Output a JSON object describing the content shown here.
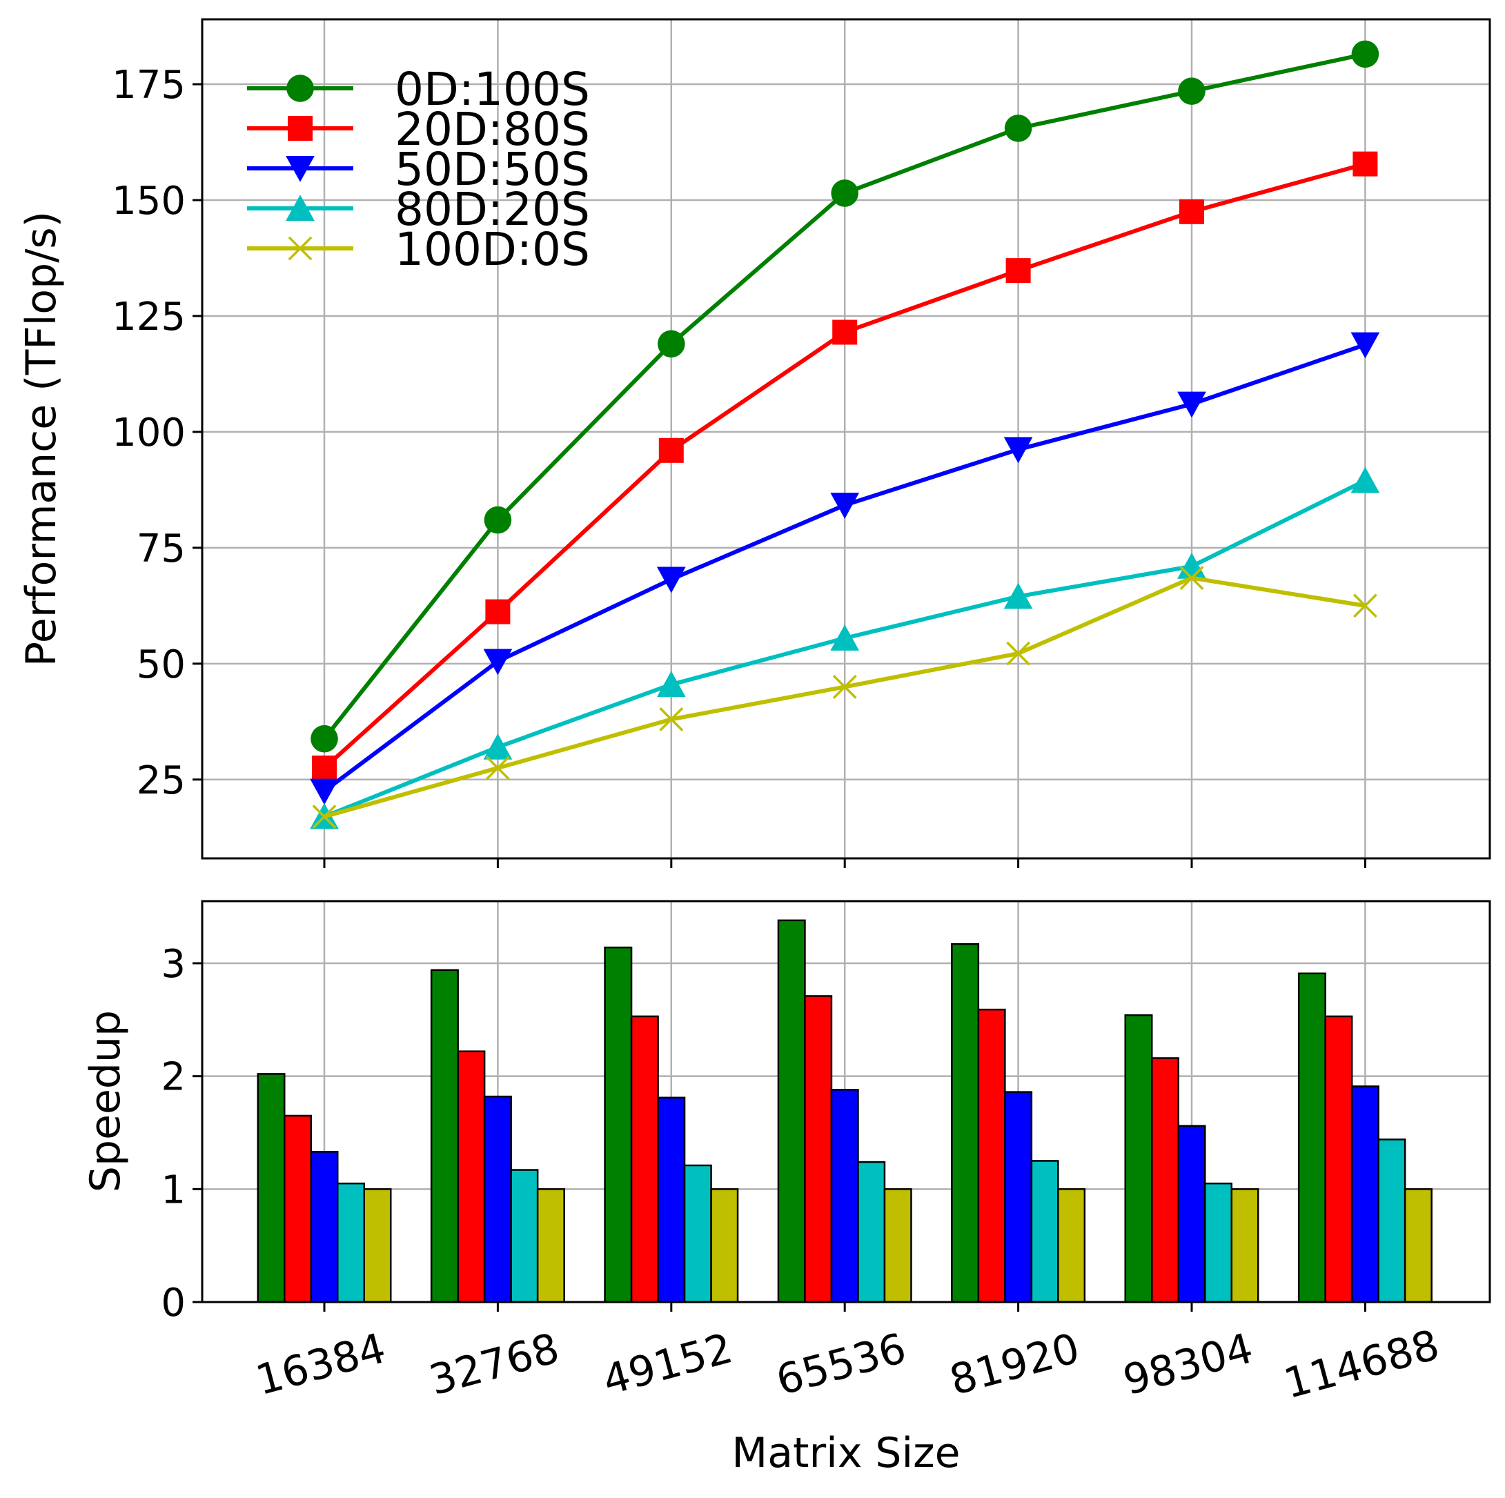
{
  "chart_data": [
    {
      "type": "line",
      "title": "",
      "xlabel": "",
      "ylabel": "Performance (TFlop/s)",
      "ylim": [
        8,
        189
      ],
      "yticks": [
        25,
        50,
        75,
        100,
        125,
        150,
        175
      ],
      "grid": true,
      "legend_position": "upper-left",
      "categories": [
        "16384",
        "32768",
        "49152",
        "65536",
        "81920",
        "98304",
        "114688"
      ],
      "series": [
        {
          "name": "0D:100S",
          "color": "#008000",
          "marker": "circle",
          "values": [
            33.8,
            81.0,
            119.0,
            151.5,
            165.5,
            173.5,
            181.5
          ]
        },
        {
          "name": "20D:80S",
          "color": "#ff0000",
          "marker": "square",
          "values": [
            27.5,
            61.2,
            96.0,
            121.5,
            134.8,
            147.5,
            157.8
          ]
        },
        {
          "name": "50D:50S",
          "color": "#0000ff",
          "marker": "triangle-down",
          "values": [
            22.5,
            50.5,
            68.2,
            84.2,
            96.2,
            106.0,
            118.8
          ]
        },
        {
          "name": "80D:20S",
          "color": "#00bfbf",
          "marker": "triangle-up",
          "values": [
            17.0,
            32.0,
            45.5,
            55.5,
            64.5,
            71.0,
            89.5
          ]
        },
        {
          "name": "100D:0S",
          "color": "#bfbf00",
          "marker": "x",
          "values": [
            17.0,
            27.5,
            38.0,
            45.0,
            52.2,
            68.5,
            62.5
          ]
        }
      ]
    },
    {
      "type": "bar",
      "title": "",
      "xlabel": "Matrix Size",
      "ylabel": "Speedup",
      "ylim": [
        0,
        3.55
      ],
      "yticks": [
        0,
        1,
        2,
        3
      ],
      "grid": true,
      "categories": [
        "16384",
        "32768",
        "49152",
        "65536",
        "81920",
        "98304",
        "114688"
      ],
      "series": [
        {
          "name": "0D:100S",
          "color": "#008000",
          "values": [
            2.02,
            2.94,
            3.14,
            3.38,
            3.17,
            2.54,
            2.91
          ]
        },
        {
          "name": "20D:80S",
          "color": "#ff0000",
          "values": [
            1.65,
            2.22,
            2.53,
            2.71,
            2.59,
            2.16,
            2.53
          ]
        },
        {
          "name": "50D:50S",
          "color": "#0000ff",
          "values": [
            1.33,
            1.82,
            1.81,
            1.88,
            1.86,
            1.56,
            1.91
          ]
        },
        {
          "name": "80D:20S",
          "color": "#00bfbf",
          "values": [
            1.05,
            1.17,
            1.21,
            1.24,
            1.25,
            1.05,
            1.44
          ]
        },
        {
          "name": "100D:0S",
          "color": "#bfbf00",
          "values": [
            1.0,
            1.0,
            1.0,
            1.0,
            1.0,
            1.0,
            1.0
          ]
        }
      ]
    }
  ]
}
